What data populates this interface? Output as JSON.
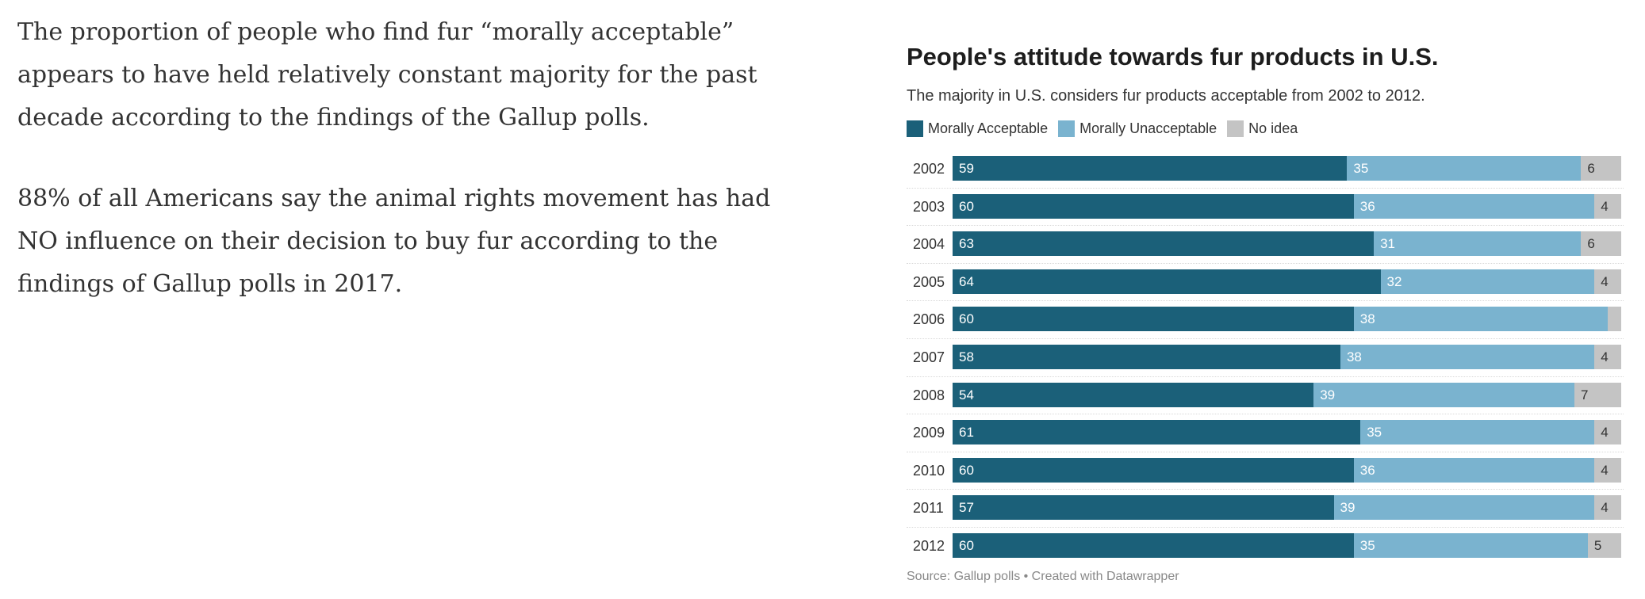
{
  "article": {
    "paragraphs": [
      "The proportion of people who find fur “morally acceptable” appears to have held relatively constant majority for the past decade according to the findings of the Gallup polls.",
      "88% of all Americans say the animal rights movement has had NO influence on their decision to buy fur according to the findings of Gallup polls in 2017."
    ]
  },
  "chart_data": {
    "type": "bar",
    "orientation": "horizontal",
    "stacked": true,
    "title": "People's attitude towards fur products in U.S.",
    "subtitle": "The majority in U.S. considers fur products acceptable from 2002 to 2012.",
    "legend_position": "top-left",
    "categories": [
      "2002",
      "2003",
      "2004",
      "2005",
      "2006",
      "2007",
      "2008",
      "2009",
      "2010",
      "2011",
      "2012"
    ],
    "series": [
      {
        "name": "Morally Acceptable",
        "color": "#1b6079",
        "values": [
          59,
          60,
          63,
          64,
          60,
          58,
          54,
          61,
          60,
          57,
          60
        ]
      },
      {
        "name": "Morally Unacceptable",
        "color": "#7ab3cf",
        "values": [
          35,
          36,
          31,
          32,
          38,
          38,
          39,
          35,
          36,
          39,
          35
        ]
      },
      {
        "name": "No idea",
        "color": "#c4c4c4",
        "values": [
          6,
          4,
          6,
          4,
          2,
          4,
          7,
          4,
          4,
          4,
          5
        ]
      }
    ],
    "data_labels": [
      [
        "59",
        "35",
        "6"
      ],
      [
        "60",
        "36",
        "4"
      ],
      [
        "63",
        "31",
        "6"
      ],
      [
        "64",
        "32",
        "4"
      ],
      [
        "60",
        "38",
        ""
      ],
      [
        "58",
        "38",
        "4"
      ],
      [
        "54",
        "39",
        "7"
      ],
      [
        "61",
        "35",
        "4"
      ],
      [
        "60",
        "36",
        "4"
      ],
      [
        "57",
        "39",
        "4"
      ],
      [
        "60",
        "35",
        "5"
      ]
    ],
    "xlim": [
      0,
      100
    ],
    "source": "Source: Gallup polls • Created with Datawrapper"
  }
}
